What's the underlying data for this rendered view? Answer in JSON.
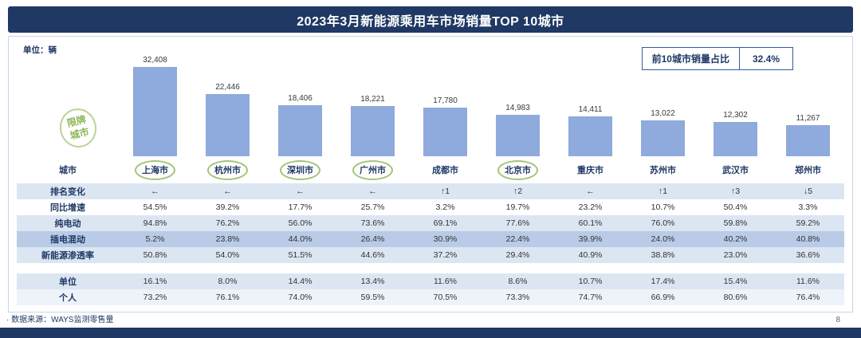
{
  "header": {
    "title": "2023年3月新能源乘用车市场销量TOP 10城市"
  },
  "unit_label": "单位：辆",
  "share_box": {
    "label": "前10城市销量占比",
    "value": "32.4%"
  },
  "restricted_badge": {
    "line1": "限牌",
    "line2": "城市"
  },
  "city_row_label": "城市",
  "chart_data": {
    "type": "bar",
    "title": "2023年3月新能源乘用车市场销量TOP 10城市",
    "unit": "辆",
    "categories": [
      "上海市",
      "杭州市",
      "深圳市",
      "广州市",
      "成都市",
      "北京市",
      "重庆市",
      "苏州市",
      "武汉市",
      "郑州市"
    ],
    "values": [
      32408,
      22446,
      18406,
      18221,
      17780,
      14983,
      14411,
      13022,
      12302,
      11267
    ],
    "value_labels": [
      "32,408",
      "22,446",
      "18,406",
      "18,221",
      "17,780",
      "14,983",
      "14,411",
      "13,022",
      "12,302",
      "11,267"
    ],
    "restricted_cities": [
      "上海市",
      "杭州市",
      "深圳市",
      "广州市",
      "北京市"
    ],
    "top10_share": "32.4%",
    "ylim": [
      0,
      32408
    ],
    "legend_position": "none",
    "grid": false,
    "table_rows": [
      {
        "label": "排名变化",
        "values": [
          "←",
          "←",
          "←",
          "←",
          "↑1",
          "↑2",
          "←",
          "↑1",
          "↑3",
          "↓5"
        ]
      },
      {
        "label": "同比增速",
        "values": [
          "54.5%",
          "39.2%",
          "17.7%",
          "25.7%",
          "3.2%",
          "19.7%",
          "23.2%",
          "10.7%",
          "50.4%",
          "3.3%"
        ]
      },
      {
        "label": "纯电动",
        "values": [
          "94.8%",
          "76.2%",
          "56.0%",
          "73.6%",
          "69.1%",
          "77.6%",
          "60.1%",
          "76.0%",
          "59.8%",
          "59.2%"
        ]
      },
      {
        "label": "插电混动",
        "values": [
          "5.2%",
          "23.8%",
          "44.0%",
          "26.4%",
          "30.9%",
          "22.4%",
          "39.9%",
          "24.0%",
          "40.2%",
          "40.8%"
        ]
      },
      {
        "label": "新能源渗透率",
        "values": [
          "50.8%",
          "54.0%",
          "51.5%",
          "44.6%",
          "37.2%",
          "29.4%",
          "40.9%",
          "38.8%",
          "23.0%",
          "36.6%"
        ]
      },
      {
        "label": "单位",
        "values": [
          "16.1%",
          "8.0%",
          "14.4%",
          "13.4%",
          "11.6%",
          "8.6%",
          "10.7%",
          "17.4%",
          "15.4%",
          "11.6%"
        ]
      },
      {
        "label": "个人",
        "values": [
          "73.2%",
          "76.1%",
          "74.0%",
          "59.5%",
          "70.5%",
          "73.3%",
          "74.7%",
          "66.9%",
          "80.6%",
          "76.4%"
        ]
      }
    ]
  },
  "footer": {
    "bullet": "·",
    "source": "数据来源：WAYS监测零售量",
    "page": "8"
  },
  "colors": {
    "header_navy": "#1f3864",
    "bar_blue": "#8faadc",
    "row_light_blue": "#dce6f3",
    "row_medium_blue": "#b9cbe6",
    "restricted_green": "#8eb558",
    "share_box_border": "#2e5e9e"
  }
}
